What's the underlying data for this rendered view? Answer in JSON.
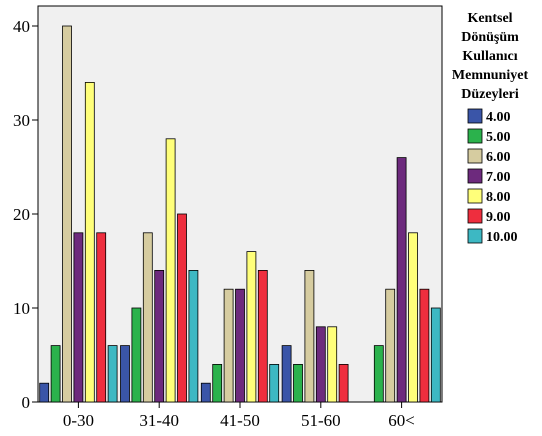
{
  "chart_data": {
    "type": "bar",
    "categories": [
      "0-30",
      "31-40",
      "41-50",
      "51-60",
      "60<"
    ],
    "y_ticks": [
      "0",
      "10",
      "20",
      "30",
      "40"
    ],
    "ylim": [
      0,
      42
    ],
    "grid": false,
    "legend_position": "right",
    "legend_title_lines": [
      "Kentsel",
      "Dönüşüm",
      "Kullanıcı",
      "Memnuniyet",
      "Düzeyleri"
    ],
    "series": [
      {
        "name": "4.00",
        "color": "#3a55a8",
        "values": [
          2,
          6,
          2,
          6,
          0
        ]
      },
      {
        "name": "5.00",
        "color": "#2bb24c",
        "values": [
          6,
          10,
          4,
          4,
          6
        ]
      },
      {
        "name": "6.00",
        "color": "#d6cca0",
        "values": [
          40,
          18,
          12,
          14,
          12
        ]
      },
      {
        "name": "7.00",
        "color": "#6d2a7d",
        "values": [
          18,
          14,
          12,
          8,
          26
        ]
      },
      {
        "name": "8.00",
        "color": "#ffff7a",
        "values": [
          34,
          28,
          16,
          8,
          18
        ]
      },
      {
        "name": "9.00",
        "color": "#ee2e3e",
        "values": [
          18,
          20,
          14,
          4,
          12
        ]
      },
      {
        "name": "10.00",
        "color": "#3db8c3",
        "values": [
          6,
          14,
          4,
          0,
          10
        ]
      }
    ],
    "plot_background": "#f0f0f0"
  }
}
